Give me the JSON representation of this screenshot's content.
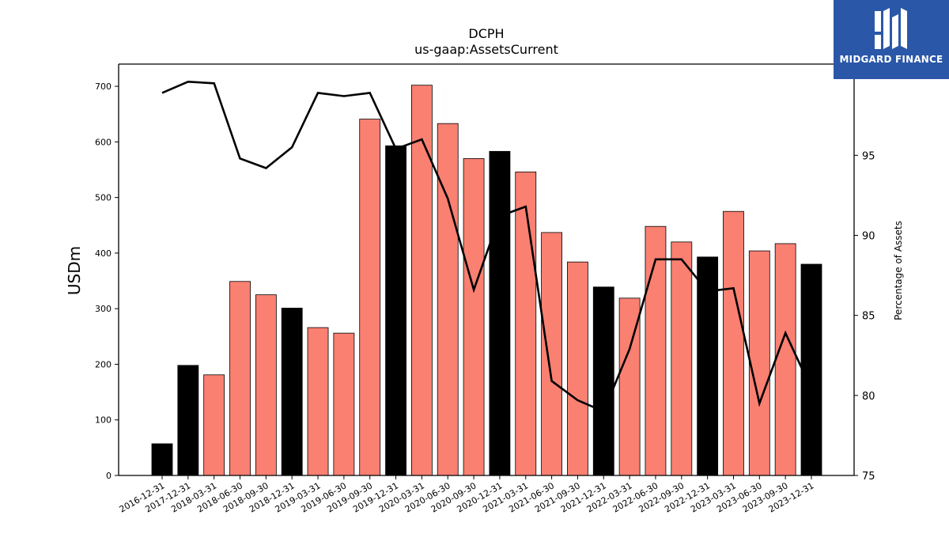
{
  "title": "DCPH",
  "subtitle": "us-gaap:AssetsCurrent",
  "brand": {
    "name": "MIDGARD FINANCE",
    "color": "#2a57a8"
  },
  "chart_data": {
    "type": "bar",
    "categories": [
      "2016-12-31",
      "2017-12-31",
      "2018-03-31",
      "2018-06-30",
      "2018-09-30",
      "2018-12-31",
      "2019-03-31",
      "2019-06-30",
      "2019-09-30",
      "2019-12-31",
      "2020-03-31",
      "2020-06-30",
      "2020-09-30",
      "2020-12-31",
      "2021-03-31",
      "2021-06-30",
      "2021-09-30",
      "2021-12-31",
      "2022-03-31",
      "2022-06-30",
      "2022-09-30",
      "2022-12-31",
      "2023-03-31",
      "2023-06-30",
      "2023-09-30",
      "2023-12-31"
    ],
    "series": [
      {
        "type": "bar",
        "axis": "left",
        "values": [
          57,
          198,
          181,
          349,
          325,
          301,
          266,
          256,
          641,
          593,
          702,
          633,
          570,
          583,
          546,
          437,
          384,
          339,
          319,
          448,
          420,
          393,
          475,
          404,
          417,
          380
        ],
        "is_year_end": [
          true,
          true,
          false,
          false,
          false,
          true,
          false,
          false,
          false,
          true,
          false,
          false,
          false,
          true,
          false,
          false,
          false,
          true,
          false,
          false,
          false,
          true,
          false,
          false,
          false,
          true
        ],
        "colors": {
          "year_end": "#000000",
          "quarter": "#fa8072"
        }
      },
      {
        "type": "line",
        "axis": "right",
        "values": [
          98.9,
          99.6,
          99.5,
          94.8,
          94.2,
          95.5,
          98.9,
          98.7,
          98.9,
          95.4,
          96.0,
          92.3,
          86.6,
          91.2,
          91.8,
          80.9,
          79.7,
          79.0,
          82.9,
          88.5,
          88.5,
          86.5,
          86.7,
          79.5,
          83.9,
          80.4
        ],
        "color": "#000000"
      }
    ],
    "ylabel": "USDm",
    "ylabel_right": "Percentage of Assets",
    "ylim": [
      0,
      740
    ],
    "yticks": [
      0,
      100,
      200,
      300,
      400,
      500,
      600,
      700
    ],
    "ylim_right": [
      75,
      100.7
    ],
    "yticks_right": [
      75,
      80,
      85,
      90,
      95
    ],
    "grid": false
  }
}
